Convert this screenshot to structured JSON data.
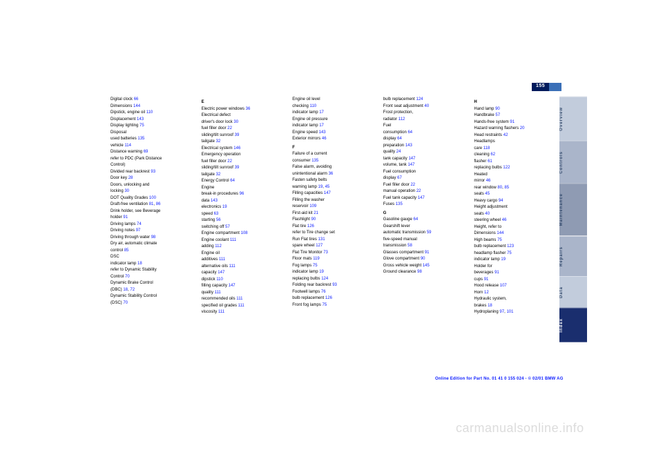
{
  "page_number": "155",
  "tabs": {
    "overview": "Overview",
    "controls": "Controls",
    "maintenance": "Maintenance",
    "repairs": "Repairs",
    "data": "Data",
    "index": "Index"
  },
  "footer": "Online Edition for Part No. 01 41 0 155 024 - © 02/01 BMW AG",
  "watermark": "carmanualsonline.info",
  "columns": [
    [
      {
        "t": "Digital clock",
        "n": "66"
      },
      {
        "t": "Dimensions",
        "n": "144"
      },
      {
        "t": "Dipstick, engine oil",
        "n": "110"
      },
      {
        "t": "Displacement",
        "n": "143"
      },
      {
        "t": "Display lighting",
        "n": "75"
      },
      {
        "t": "Disposal"
      },
      {
        "t": "used batteries",
        "n": "135"
      },
      {
        "t": "vehicle",
        "n": "114"
      },
      {
        "t": "Distance warning",
        "n": "69"
      },
      {
        "t": "refer to PDC (Park Distance"
      },
      {
        "t": "Control)"
      },
      {
        "t": "Divided rear backrest",
        "n": "93"
      },
      {
        "t": "Door key",
        "n": "28"
      },
      {
        "t": "Doors, unlocking and"
      },
      {
        "t": "locking",
        "n": "30"
      },
      {
        "t": "DOT Quality Grades",
        "n": "100"
      },
      {
        "t": "Draft-free ventilation",
        "n": "81",
        "n2": "86"
      },
      {
        "t": "Drink holder, see Beverage"
      },
      {
        "t": "holder",
        "n": "91"
      },
      {
        "t": "Driving lamps",
        "n": "74"
      },
      {
        "t": "Driving notes",
        "n": "97"
      },
      {
        "t": "Driving through water",
        "n": "98"
      },
      {
        "t": "Dry air, automatic climate"
      },
      {
        "t": "control",
        "n": "85"
      },
      {
        "t": "DSC"
      },
      {
        "t": "indicator lamp",
        "n": "18"
      },
      {
        "t": "refer to Dynamic Stability"
      },
      {
        "t": "Control",
        "n": "70"
      },
      {
        "t": "Dynamic Brake Control"
      },
      {
        "t": "(DBC)",
        "n": "18",
        "n2": "72"
      },
      {
        "t": "Dynamic Stability Control"
      },
      {
        "t": "(DSC)",
        "n": "70"
      }
    ],
    [
      {
        "t": "",
        "lead": "E"
      },
      {
        "t": "Electric power windows",
        "n": "36"
      },
      {
        "t": "Electrical defect"
      },
      {
        "t": "driver's door lock",
        "n": "30"
      },
      {
        "t": "fuel filler door",
        "n": "22"
      },
      {
        "t": "sliding/tilt sunroof",
        "n": "39"
      },
      {
        "t": "tailgate",
        "n": "32"
      },
      {
        "t": "Electrical system",
        "n": "146"
      },
      {
        "t": "Emergency operation"
      },
      {
        "t": "fuel filler door",
        "n": "22"
      },
      {
        "t": "sliding/tilt sunroof",
        "n": "39"
      },
      {
        "t": "tailgate",
        "n": "32"
      },
      {
        "t": "Energy Control",
        "n": "64"
      },
      {
        "t": "Engine"
      },
      {
        "t": "break-in procedures",
        "n": "96"
      },
      {
        "t": "data",
        "n": "143"
      },
      {
        "t": "electronics",
        "n": "19"
      },
      {
        "t": "speed",
        "n": "63"
      },
      {
        "t": "starting",
        "n": "56"
      },
      {
        "t": "switching off",
        "n": "57"
      },
      {
        "t": "Engine compartment",
        "n": "108"
      },
      {
        "t": "Engine coolant",
        "n": "111"
      },
      {
        "t": "adding",
        "n": "112"
      },
      {
        "t": "Engine oil"
      },
      {
        "t": "additives",
        "n": "111"
      },
      {
        "t": "alternative oils",
        "n": "111"
      },
      {
        "t": "capacity",
        "n": "147"
      },
      {
        "t": "dipstick",
        "n": "110"
      },
      {
        "t": "filling capacity",
        "n": "147"
      },
      {
        "t": "quality",
        "n": "111"
      },
      {
        "t": "recommended oils",
        "n": "111"
      },
      {
        "t": "specified oil grades",
        "n": "111"
      },
      {
        "t": "viscosity",
        "n": "111"
      }
    ],
    [
      {
        "t": "Engine oil level"
      },
      {
        "t": "checking",
        "n": "110"
      },
      {
        "t": "indicator lamp",
        "n": "17"
      },
      {
        "t": "Engine oil pressure"
      },
      {
        "t": "indicator lamp",
        "n": "17"
      },
      {
        "t": "Engine speed",
        "n": "143"
      },
      {
        "t": "Exterior mirrors",
        "n": "46"
      },
      {
        "t": "",
        "lead": "F"
      },
      {
        "t": "Failure of a current"
      },
      {
        "t": "consumer",
        "n": "135"
      },
      {
        "t": "False alarm, avoiding"
      },
      {
        "t": "unintentional alarm",
        "n": "36"
      },
      {
        "t": "Fasten safety belts"
      },
      {
        "t": "warning lamp",
        "n": "19",
        "n2": "45"
      },
      {
        "t": "Filling capacities",
        "n": "147"
      },
      {
        "t": "Filling the washer"
      },
      {
        "t": "reservoir",
        "n": "109"
      },
      {
        "t": "First-aid kit",
        "n": "21"
      },
      {
        "t": "Flashlight",
        "n": "90"
      },
      {
        "t": "Flat tire",
        "n": "126"
      },
      {
        "t": "refer to Tire change set"
      },
      {
        "t": "Run Flat tires",
        "n": "131"
      },
      {
        "t": "spare wheel",
        "n": "127"
      },
      {
        "t": "Flat Tire Monitor",
        "n": "73"
      },
      {
        "t": "Floor mats",
        "n": "119"
      },
      {
        "t": "Fog lamps",
        "n": "75"
      },
      {
        "t": "indicator lamp",
        "n": "19"
      },
      {
        "t": "replacing bulbs",
        "n": "124"
      },
      {
        "t": "Folding rear backrest",
        "n": "93"
      },
      {
        "t": "Footwell lamps",
        "n": "76"
      },
      {
        "t": "bulb replacement",
        "n": "126"
      },
      {
        "t": "Front fog lamps",
        "n": "75"
      }
    ],
    [
      {
        "t": "bulb replacement",
        "n": "124"
      },
      {
        "t": "Front seat adjustment",
        "n": "40"
      },
      {
        "t": "Frost protection,"
      },
      {
        "t": "radiator",
        "n": "112"
      },
      {
        "t": "Fuel"
      },
      {
        "t": "consumption",
        "n": "64"
      },
      {
        "t": "display",
        "n": "64"
      },
      {
        "t": "preparation",
        "n": "143"
      },
      {
        "t": "quality",
        "n": "24"
      },
      {
        "t": "tank capacity",
        "n": "147"
      },
      {
        "t": "volume, tank",
        "n": "147"
      },
      {
        "t": "Fuel consumption"
      },
      {
        "t": "display",
        "n": "67"
      },
      {
        "t": "Fuel filler door",
        "n": "22"
      },
      {
        "t": "manual operation",
        "n": "22"
      },
      {
        "t": "Fuel tank capacity",
        "n": "147"
      },
      {
        "t": "Fuses",
        "n": "135"
      },
      {
        "t": "",
        "lead": "G"
      },
      {
        "t": "Gasoline gauge",
        "n": "64"
      },
      {
        "t": "Gearshift lever"
      },
      {
        "t": "automatic transmission",
        "n": "59"
      },
      {
        "t": "five-speed manual"
      },
      {
        "t": "transmission",
        "n": "58"
      },
      {
        "t": "Glasses compartment",
        "n": "91"
      },
      {
        "t": "Glove compartment",
        "n": "90"
      },
      {
        "t": "Gross vehicle weight",
        "n": "145"
      },
      {
        "t": "Ground clearance",
        "n": "98"
      }
    ],
    [
      {
        "t": "",
        "lead": "H"
      },
      {
        "t": "Hand lamp",
        "n": "90"
      },
      {
        "t": "Handbrake",
        "n": "57"
      },
      {
        "t": "Hands-free system",
        "n": "91"
      },
      {
        "t": "Hazard warning flashers",
        "n": "20"
      },
      {
        "t": "Head restraints",
        "n": "42"
      },
      {
        "t": "Headlamps"
      },
      {
        "t": "care",
        "n": "118"
      },
      {
        "t": "cleaning",
        "n": "62"
      },
      {
        "t": "flasher",
        "n": "61"
      },
      {
        "t": "replacing bulbs",
        "n": "122"
      },
      {
        "t": "Heated"
      },
      {
        "t": "mirror",
        "n": "46"
      },
      {
        "t": "rear window",
        "n": "80",
        "n2": "85"
      },
      {
        "t": "seats",
        "n": "45"
      },
      {
        "t": "Heavy cargo",
        "n": "94"
      },
      {
        "t": "Height adjustment"
      },
      {
        "t": "seats",
        "n": "40"
      },
      {
        "t": "steering wheel",
        "n": "46"
      },
      {
        "t": "Height, refer to"
      },
      {
        "t": "Dimensions",
        "n": "144"
      },
      {
        "t": "High beams",
        "n": "75"
      },
      {
        "t": "bulb replacement",
        "n": "123"
      },
      {
        "t": "headlamp flasher",
        "n": "75"
      },
      {
        "t": "indicator lamp",
        "n": "19"
      },
      {
        "t": "Holder for"
      },
      {
        "t": "beverages",
        "n": "91"
      },
      {
        "t": "cups",
        "n": "91"
      },
      {
        "t": "Hood release",
        "n": "107"
      },
      {
        "t": "Horn",
        "n": "12"
      },
      {
        "t": "Hydraulic system,"
      },
      {
        "t": "brakes",
        "n": "18"
      },
      {
        "t": "Hydroplaning",
        "n": "97",
        "n2": "101"
      }
    ]
  ]
}
